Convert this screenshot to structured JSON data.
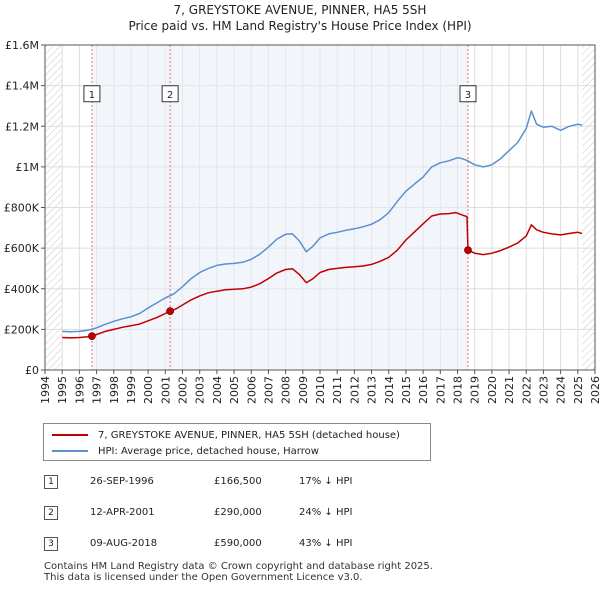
{
  "chart_data": {
    "type": "line",
    "title_line1": "7, GREYSTOKE AVENUE, PINNER, HA5 5SH",
    "title_line2": "Price paid vs. HM Land Registry's House Price Index (HPI)",
    "xlim": [
      1994,
      2026
    ],
    "ylim": [
      0,
      1600000
    ],
    "y_ticks": [
      {
        "value": 0,
        "label": "£0"
      },
      {
        "value": 200000,
        "label": "£200K"
      },
      {
        "value": 400000,
        "label": "£400K"
      },
      {
        "value": 600000,
        "label": "£600K"
      },
      {
        "value": 800000,
        "label": "£800K"
      },
      {
        "value": 1000000,
        "label": "£1M"
      },
      {
        "value": 1200000,
        "label": "£1.2M"
      },
      {
        "value": 1400000,
        "label": "£1.4M"
      },
      {
        "value": 1600000,
        "label": "£1.6M"
      }
    ],
    "x_ticks": [
      "1994",
      "1995",
      "1996",
      "1997",
      "1998",
      "1999",
      "2000",
      "2001",
      "2002",
      "2003",
      "2004",
      "2005",
      "2006",
      "2007",
      "2008",
      "2009",
      "2010",
      "2011",
      "2012",
      "2013",
      "2014",
      "2015",
      "2016",
      "2017",
      "2018",
      "2019",
      "2020",
      "2021",
      "2022",
      "2023",
      "2024",
      "2025",
      "2026"
    ],
    "data_start": 1995.0,
    "data_end": 2025.25,
    "hatch_before": 1995.0,
    "hatch_after": 2025.25,
    "colors": {
      "property": "#c00000",
      "hpi": "#5b8fd0",
      "grid": "#dddddd",
      "plot_bg": "#ffffff",
      "shade": "#e8eef8",
      "vline": "#e07070"
    },
    "series": [
      {
        "name": "7, GREYSTOKE AVENUE, PINNER, HA5 5SH (detached house)",
        "color": "#c00000",
        "points": [
          [
            1995.0,
            160000
          ],
          [
            1995.5,
            158000
          ],
          [
            1996.0,
            160000
          ],
          [
            1996.5,
            164000
          ],
          [
            1996.73,
            166500
          ],
          [
            1997.0,
            175000
          ],
          [
            1997.5,
            190000
          ],
          [
            1998.0,
            200000
          ],
          [
            1998.5,
            210000
          ],
          [
            1999.0,
            218000
          ],
          [
            1999.5,
            226000
          ],
          [
            2000.0,
            242000
          ],
          [
            2000.5,
            258000
          ],
          [
            2001.0,
            278000
          ],
          [
            2001.28,
            290000
          ],
          [
            2001.6,
            300000
          ],
          [
            2002.0,
            320000
          ],
          [
            2002.5,
            345000
          ],
          [
            2003.0,
            365000
          ],
          [
            2003.5,
            380000
          ],
          [
            2004.0,
            388000
          ],
          [
            2004.5,
            395000
          ],
          [
            2005.0,
            398000
          ],
          [
            2005.5,
            400000
          ],
          [
            2006.0,
            408000
          ],
          [
            2006.5,
            425000
          ],
          [
            2007.0,
            450000
          ],
          [
            2007.5,
            478000
          ],
          [
            2008.0,
            495000
          ],
          [
            2008.4,
            498000
          ],
          [
            2008.8,
            470000
          ],
          [
            2009.2,
            430000
          ],
          [
            2009.6,
            450000
          ],
          [
            2010.0,
            480000
          ],
          [
            2010.5,
            495000
          ],
          [
            2011.0,
            500000
          ],
          [
            2011.5,
            505000
          ],
          [
            2012.0,
            508000
          ],
          [
            2012.5,
            512000
          ],
          [
            2013.0,
            520000
          ],
          [
            2013.5,
            535000
          ],
          [
            2014.0,
            555000
          ],
          [
            2014.5,
            590000
          ],
          [
            2015.0,
            640000
          ],
          [
            2015.5,
            680000
          ],
          [
            2016.0,
            720000
          ],
          [
            2016.5,
            758000
          ],
          [
            2017.0,
            768000
          ],
          [
            2017.5,
            770000
          ],
          [
            2017.9,
            775000
          ],
          [
            2018.3,
            762000
          ],
          [
            2018.55,
            755000
          ],
          [
            2018.61,
            590000
          ],
          [
            2019.0,
            575000
          ],
          [
            2019.5,
            568000
          ],
          [
            2020.0,
            575000
          ],
          [
            2020.5,
            588000
          ],
          [
            2021.0,
            605000
          ],
          [
            2021.5,
            625000
          ],
          [
            2022.0,
            660000
          ],
          [
            2022.3,
            715000
          ],
          [
            2022.6,
            690000
          ],
          [
            2023.0,
            678000
          ],
          [
            2023.5,
            670000
          ],
          [
            2024.0,
            665000
          ],
          [
            2024.5,
            672000
          ],
          [
            2025.0,
            678000
          ],
          [
            2025.25,
            672000
          ]
        ]
      },
      {
        "name": "HPI: Average price, detached house, Harrow",
        "color": "#5b8fd0",
        "points": [
          [
            1995.0,
            190000
          ],
          [
            1995.5,
            188000
          ],
          [
            1996.0,
            190000
          ],
          [
            1996.5,
            196000
          ],
          [
            1997.0,
            208000
          ],
          [
            1997.5,
            225000
          ],
          [
            1998.0,
            240000
          ],
          [
            1998.5,
            252000
          ],
          [
            1999.0,
            262000
          ],
          [
            1999.5,
            278000
          ],
          [
            2000.0,
            305000
          ],
          [
            2000.5,
            330000
          ],
          [
            2001.0,
            355000
          ],
          [
            2001.5,
            375000
          ],
          [
            2002.0,
            410000
          ],
          [
            2002.5,
            450000
          ],
          [
            2003.0,
            480000
          ],
          [
            2003.5,
            500000
          ],
          [
            2004.0,
            515000
          ],
          [
            2004.5,
            522000
          ],
          [
            2005.0,
            525000
          ],
          [
            2005.5,
            530000
          ],
          [
            2006.0,
            545000
          ],
          [
            2006.5,
            570000
          ],
          [
            2007.0,
            605000
          ],
          [
            2007.5,
            645000
          ],
          [
            2008.0,
            668000
          ],
          [
            2008.4,
            670000
          ],
          [
            2008.8,
            635000
          ],
          [
            2009.2,
            582000
          ],
          [
            2009.6,
            610000
          ],
          [
            2010.0,
            650000
          ],
          [
            2010.5,
            670000
          ],
          [
            2011.0,
            678000
          ],
          [
            2011.5,
            688000
          ],
          [
            2012.0,
            695000
          ],
          [
            2012.5,
            705000
          ],
          [
            2013.0,
            718000
          ],
          [
            2013.5,
            740000
          ],
          [
            2014.0,
            775000
          ],
          [
            2014.5,
            830000
          ],
          [
            2015.0,
            880000
          ],
          [
            2015.5,
            915000
          ],
          [
            2016.0,
            950000
          ],
          [
            2016.5,
            1000000
          ],
          [
            2017.0,
            1020000
          ],
          [
            2017.5,
            1030000
          ],
          [
            2018.0,
            1045000
          ],
          [
            2018.3,
            1040000
          ],
          [
            2018.6,
            1030000
          ],
          [
            2019.0,
            1010000
          ],
          [
            2019.5,
            1000000
          ],
          [
            2020.0,
            1010000
          ],
          [
            2020.5,
            1040000
          ],
          [
            2021.0,
            1080000
          ],
          [
            2021.5,
            1120000
          ],
          [
            2022.0,
            1190000
          ],
          [
            2022.3,
            1275000
          ],
          [
            2022.6,
            1210000
          ],
          [
            2023.0,
            1195000
          ],
          [
            2023.5,
            1200000
          ],
          [
            2024.0,
            1180000
          ],
          [
            2024.5,
            1200000
          ],
          [
            2025.0,
            1210000
          ],
          [
            2025.25,
            1205000
          ]
        ]
      }
    ],
    "transactions": [
      {
        "num": "1",
        "x": 1996.73,
        "y": 166500,
        "label_y": 1360000
      },
      {
        "num": "2",
        "x": 2001.28,
        "y": 290000,
        "label_y": 1360000
      },
      {
        "num": "3",
        "x": 2018.61,
        "y": 590000,
        "label_y": 1360000
      }
    ]
  },
  "legend": {
    "property_label": "7, GREYSTOKE AVENUE, PINNER, HA5 5SH (detached house)",
    "hpi_label": "HPI: Average price, detached house, Harrow"
  },
  "table": [
    {
      "num": "1",
      "date": "26-SEP-1996",
      "price": "£166,500",
      "hpi": "17% ↓ HPI"
    },
    {
      "num": "2",
      "date": "12-APR-2001",
      "price": "£290,000",
      "hpi": "24% ↓ HPI"
    },
    {
      "num": "3",
      "date": "09-AUG-2018",
      "price": "£590,000",
      "hpi": "43% ↓ HPI"
    }
  ],
  "footer": {
    "line1": "Contains HM Land Registry data © Crown copyright and database right 2025.",
    "line2": "This data is licensed under the Open Government Licence v3.0."
  }
}
